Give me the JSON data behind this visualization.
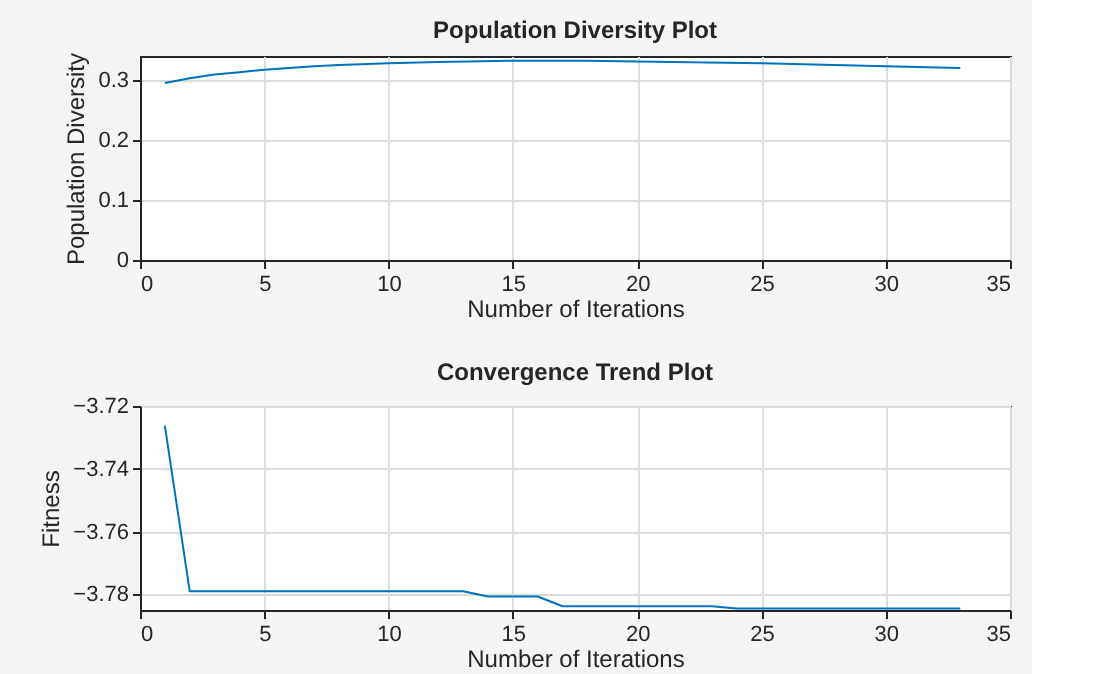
{
  "chart_data": [
    {
      "type": "line",
      "title": "Population Diversity Plot",
      "xlabel": "Number of Iterations",
      "ylabel": "Population Diversity",
      "x": [
        1,
        2,
        3,
        4,
        5,
        6,
        7,
        8,
        10,
        12,
        15,
        18,
        20,
        25,
        30,
        33
      ],
      "series": [
        {
          "color": "#0072bd",
          "values": [
            0.295,
            0.303,
            0.309,
            0.313,
            0.317,
            0.32,
            0.323,
            0.325,
            0.328,
            0.33,
            0.332,
            0.332,
            0.331,
            0.328,
            0.323,
            0.32
          ]
        }
      ],
      "xlim": [
        0,
        35
      ],
      "xticks": [
        0,
        5,
        10,
        15,
        20,
        25,
        30,
        35
      ],
      "ylim": [
        0,
        0.34
      ],
      "yticks": [
        {
          "value": 0,
          "label": "0"
        },
        0.1,
        0.2,
        0.3
      ],
      "grid": true,
      "line_style": "solid"
    },
    {
      "type": "line",
      "title": "Convergence Trend Plot",
      "xlabel": "Number of Iterations",
      "ylabel": "Fitness",
      "x": [
        1,
        2,
        13,
        14,
        16,
        17,
        23,
        24,
        33
      ],
      "series": [
        {
          "color": "#0072bd",
          "values": [
            -3.7263,
            -3.779,
            -3.779,
            -3.7807,
            -3.7807,
            -3.7838,
            -3.7838,
            -3.7845,
            -3.7845
          ]
        }
      ],
      "xlim": [
        0,
        35
      ],
      "xticks": [
        0,
        5,
        10,
        15,
        20,
        25,
        30,
        35
      ],
      "ylim": [
        -3.785,
        -3.72
      ],
      "yticks": [
        -3.78,
        -3.76,
        -3.74,
        -3.72
      ],
      "grid": true,
      "line_style": "solid"
    }
  ]
}
